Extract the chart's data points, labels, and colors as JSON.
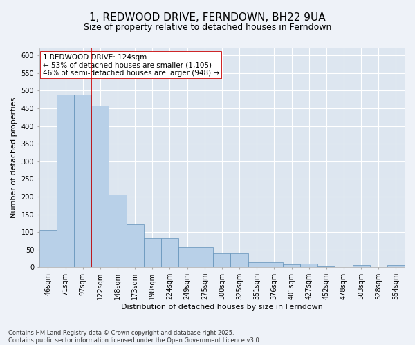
{
  "title": "1, REDWOOD DRIVE, FERNDOWN, BH22 9UA",
  "subtitle": "Size of property relative to detached houses in Ferndown",
  "xlabel": "Distribution of detached houses by size in Ferndown",
  "ylabel": "Number of detached properties",
  "categories": [
    "46sqm",
    "71sqm",
    "97sqm",
    "122sqm",
    "148sqm",
    "173sqm",
    "198sqm",
    "224sqm",
    "249sqm",
    "275sqm",
    "300sqm",
    "325sqm",
    "351sqm",
    "376sqm",
    "401sqm",
    "427sqm",
    "452sqm",
    "478sqm",
    "503sqm",
    "528sqm",
    "554sqm"
  ],
  "values": [
    105,
    490,
    490,
    457,
    206,
    122,
    82,
    82,
    57,
    57,
    39,
    40,
    14,
    14,
    9,
    11,
    3,
    0,
    6,
    0,
    6
  ],
  "bar_color": "#b8d0e8",
  "bar_edge_color": "#6090b8",
  "annotation_text": "1 REDWOOD DRIVE: 124sqm\n← 53% of detached houses are smaller (1,105)\n46% of semi-detached houses are larger (948) →",
  "annotation_box_color": "#ffffff",
  "annotation_box_edge_color": "#cc0000",
  "red_line_color": "#cc0000",
  "ylim": [
    0,
    620
  ],
  "yticks": [
    0,
    50,
    100,
    150,
    200,
    250,
    300,
    350,
    400,
    450,
    500,
    550,
    600
  ],
  "footer": "Contains HM Land Registry data © Crown copyright and database right 2025.\nContains public sector information licensed under the Open Government Licence v3.0.",
  "background_color": "#dde6f0",
  "fig_background_color": "#eef2f8",
  "grid_color": "#ffffff",
  "title_fontsize": 11,
  "subtitle_fontsize": 9,
  "axis_label_fontsize": 8,
  "tick_fontsize": 7,
  "footer_fontsize": 6,
  "annotation_fontsize": 7.5
}
